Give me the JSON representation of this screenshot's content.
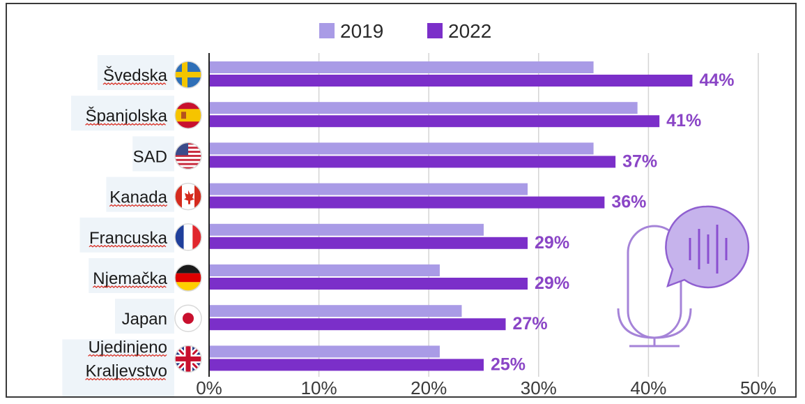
{
  "chart_data": {
    "type": "bar",
    "orientation": "horizontal",
    "categories": [
      "Švedska",
      "Španjolska",
      "SAD",
      "Kanada",
      "Francuska",
      "Njemačka",
      "Japan",
      "Ujedinjeno Kraljevstvo"
    ],
    "category_lines": [
      [
        "Švedska"
      ],
      [
        "Španjolska"
      ],
      [
        "SAD"
      ],
      [
        "Kanada"
      ],
      [
        "Francuska"
      ],
      [
        "Njemačka"
      ],
      [
        "Japan"
      ],
      [
        "Ujedinjeno",
        "Kraljevstvo"
      ]
    ],
    "flag_icons": [
      "flag-sweden-icon",
      "flag-spain-icon",
      "flag-usa-icon",
      "flag-canada-icon",
      "flag-france-icon",
      "flag-germany-icon",
      "flag-japan-icon",
      "flag-uk-icon"
    ],
    "series": [
      {
        "name": "2019",
        "color": "#a99be6",
        "values": [
          35,
          39,
          35,
          29,
          25,
          21,
          23,
          21
        ]
      },
      {
        "name": "2022",
        "color": "#7b2fc9",
        "values": [
          44,
          41,
          37,
          36,
          29,
          29,
          27,
          25
        ]
      }
    ],
    "data_labels": [
      "44%",
      "41%",
      "37%",
      "36%",
      "29%",
      "29%",
      "27%",
      "25%"
    ],
    "data_label_color": "#8a45c6",
    "xlim": [
      0,
      50
    ],
    "xticks": [
      0,
      10,
      20,
      30,
      40,
      50
    ],
    "xtick_labels": [
      "0%",
      "10%",
      "20%",
      "30%",
      "40%",
      "50%"
    ],
    "grid": true,
    "legend_position": "top-center",
    "decoration_icon": "microphone-speech-icon",
    "decoration_color": "#a583d8"
  }
}
